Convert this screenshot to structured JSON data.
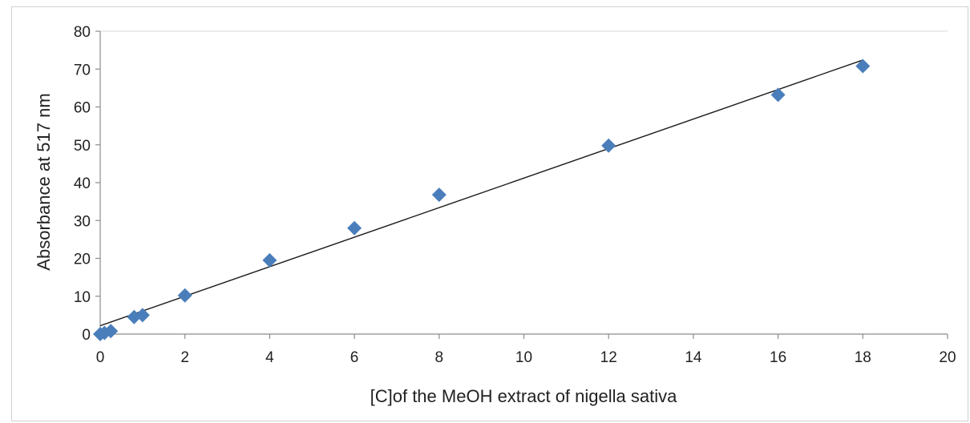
{
  "chart_data": {
    "type": "scatter",
    "title": "",
    "xlabel": "[C]of the MeOH extract of nigella sativa",
    "ylabel": "Absorbance at 517 nm",
    "xlim": [
      0,
      20
    ],
    "ylim": [
      0,
      80
    ],
    "x_ticks": [
      0,
      2,
      4,
      6,
      8,
      10,
      12,
      14,
      16,
      18,
      20
    ],
    "y_ticks": [
      0,
      10,
      20,
      30,
      40,
      50,
      60,
      70,
      80
    ],
    "grid": "horizontal-top-only",
    "legend": "none",
    "marker": "diamond",
    "marker_color": "#4a7ebb",
    "trendline_color": "#1a1a1a",
    "series": [
      {
        "points": [
          {
            "x": 0,
            "y": 0
          },
          {
            "x": 0.1,
            "y": 0.3
          },
          {
            "x": 0.25,
            "y": 0.8
          },
          {
            "x": 0.8,
            "y": 4.5
          },
          {
            "x": 1,
            "y": 5
          },
          {
            "x": 2,
            "y": 10.2
          },
          {
            "x": 4,
            "y": 19.5
          },
          {
            "x": 6,
            "y": 28
          },
          {
            "x": 8,
            "y": 36.8
          },
          {
            "x": 12,
            "y": 49.8
          },
          {
            "x": 16,
            "y": 63.2
          },
          {
            "x": 18,
            "y": 70.8
          }
        ]
      }
    ],
    "trendline": {
      "type": "linear",
      "x": [
        0,
        18
      ],
      "y": [
        2.2,
        72.4
      ]
    }
  }
}
